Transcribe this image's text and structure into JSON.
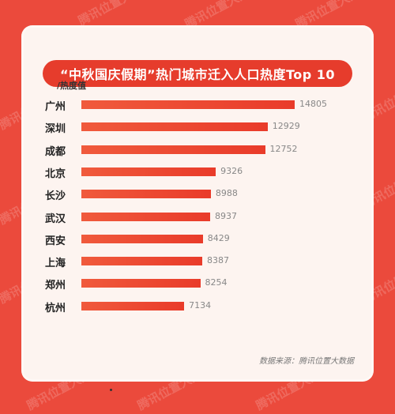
{
  "watermark": "腾讯位置大数据",
  "chart_data": {
    "type": "bar",
    "orientation": "horizontal",
    "title": "“中秋国庆假期”热门城市迁入人口热度Top 10",
    "ylabel": "/热度值",
    "categories": [
      "广州",
      "深圳",
      "成都",
      "北京",
      "长沙",
      "武汉",
      "西安",
      "上海",
      "郑州",
      "杭州"
    ],
    "values": [
      14805,
      12929,
      12752,
      9326,
      8988,
      8937,
      8429,
      8387,
      8254,
      7134
    ],
    "grid": false,
    "legend": "none"
  },
  "source": "数据来源：腾讯位置大数据",
  "colors": {
    "background": "#eb4a3c",
    "card": "#fdf4f0",
    "bar": "#e93b2a",
    "title_bg": "#e63c2c"
  }
}
